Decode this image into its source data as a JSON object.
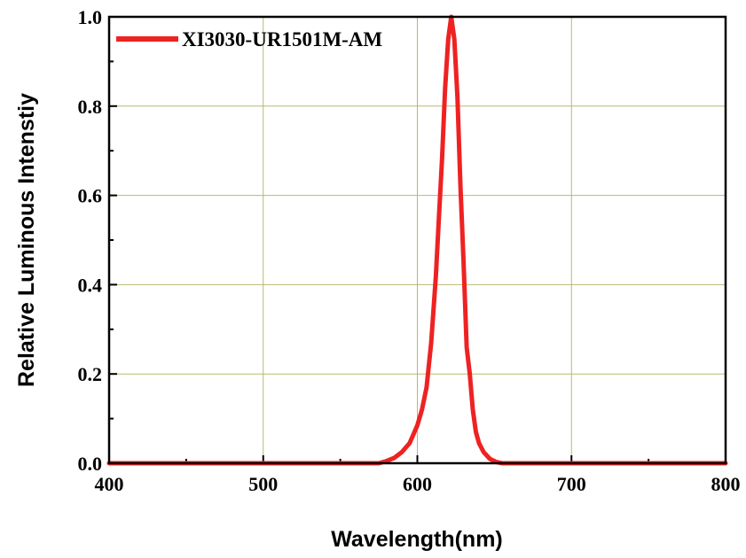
{
  "chart_data": {
    "type": "line",
    "title": "",
    "xlabel": "Wavelength(nm)",
    "ylabel": "Relative Luminous Intenstiy",
    "xlim": [
      400,
      800
    ],
    "ylim": [
      0.0,
      1.0
    ],
    "x_ticks": [
      "400",
      "500",
      "600",
      "700",
      "800"
    ],
    "y_ticks": [
      "0.0",
      "0.2",
      "0.4",
      "0.6",
      "0.8",
      "1.0"
    ],
    "grid": true,
    "grid_color": "#b8b870",
    "legend_position": "top-left",
    "series": [
      {
        "name": "XI3030-UR1501M-AM",
        "color": "#ee2222",
        "points": [
          [
            400,
            0.0
          ],
          [
            570,
            0.0
          ],
          [
            575,
            0.0
          ],
          [
            580,
            0.005
          ],
          [
            585,
            0.012
          ],
          [
            590,
            0.025
          ],
          [
            595,
            0.045
          ],
          [
            600,
            0.085
          ],
          [
            603,
            0.12
          ],
          [
            606,
            0.17
          ],
          [
            609,
            0.27
          ],
          [
            612,
            0.42
          ],
          [
            614,
            0.55
          ],
          [
            616,
            0.68
          ],
          [
            618,
            0.84
          ],
          [
            620,
            0.95
          ],
          [
            622,
            1.0
          ],
          [
            624,
            0.95
          ],
          [
            626,
            0.82
          ],
          [
            628,
            0.62
          ],
          [
            630,
            0.45
          ],
          [
            632,
            0.26
          ],
          [
            634,
            0.2
          ],
          [
            636,
            0.12
          ],
          [
            638,
            0.07
          ],
          [
            640,
            0.045
          ],
          [
            643,
            0.025
          ],
          [
            647,
            0.01
          ],
          [
            651,
            0.003
          ],
          [
            655,
            0.0
          ],
          [
            800,
            0.0
          ]
        ]
      }
    ]
  }
}
